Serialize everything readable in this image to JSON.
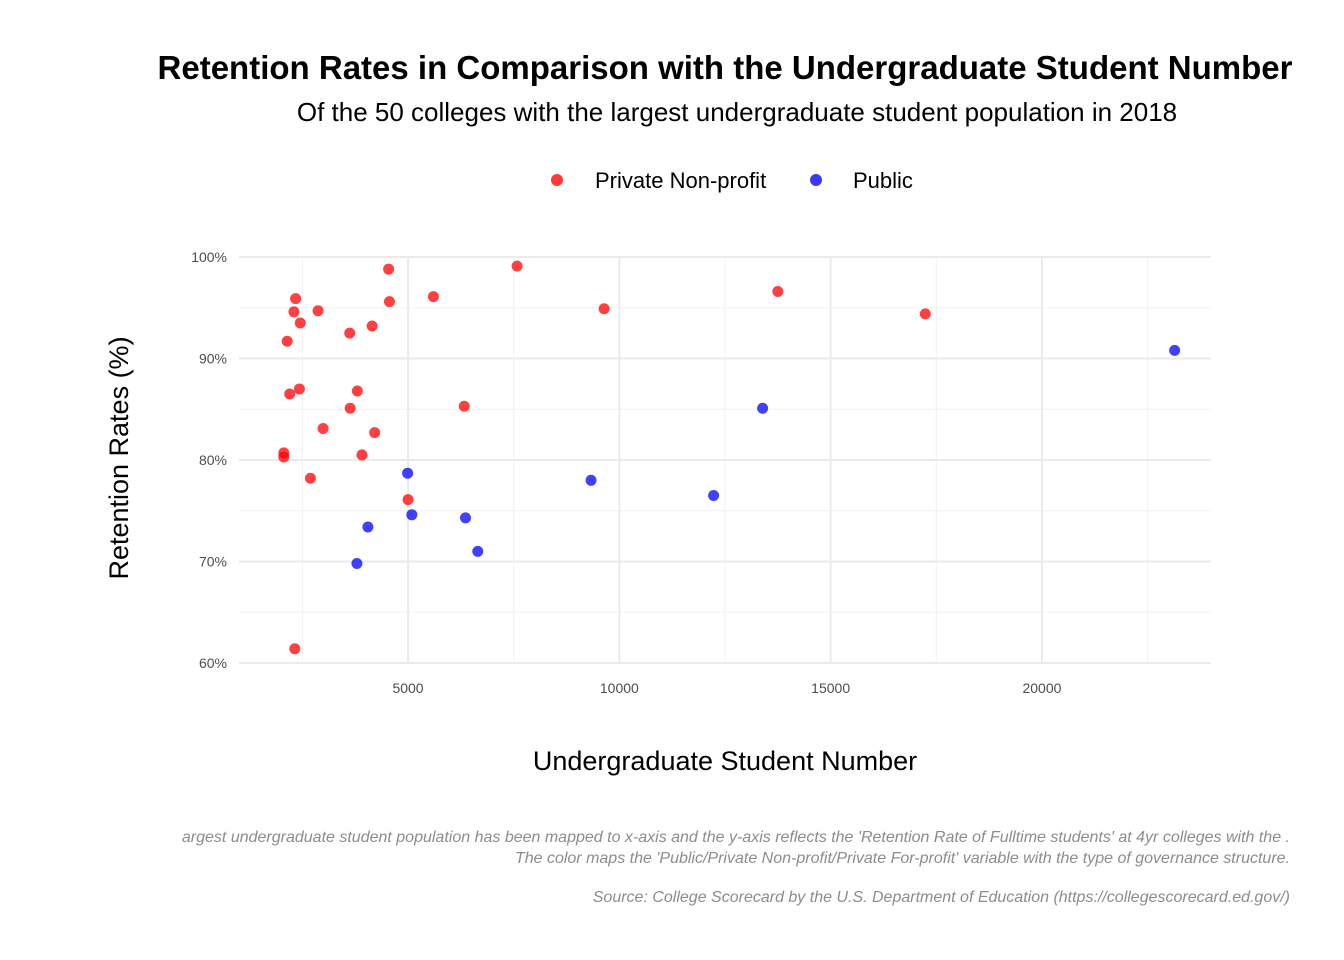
{
  "colors": {
    "private_non_profit": "#ff0000",
    "public": "#0000ff",
    "grid_major": "#ebebeb",
    "grid_minor": "#f2f2f2",
    "caption": "#8c8c8c"
  },
  "chart_data": {
    "type": "scatter",
    "title": "Retention Rates in Comparison with the Undergraduate Student Number",
    "subtitle": "Of the 50 colleges with the largest undergraduate student population in 2018",
    "xlabel": "Undergraduate Student Number",
    "ylabel": "Retention Rates (%)",
    "xlim": [
      1000,
      24000
    ],
    "ylim": [
      0.6,
      1.0
    ],
    "x_ticks": [
      5000,
      10000,
      15000,
      20000
    ],
    "x_tick_labels": [
      "5000",
      "10000",
      "15000",
      "20000"
    ],
    "y_ticks": [
      0.6,
      0.7,
      0.8,
      0.9,
      1.0
    ],
    "y_tick_labels": [
      "60%",
      "70%",
      "80%",
      "90%",
      "100%"
    ],
    "grid": true,
    "legend_position": "top",
    "series": [
      {
        "name": "Private Non-profit",
        "color": "#ff0000",
        "points": [
          [
            2060,
            0.807
          ],
          [
            2060,
            0.803
          ],
          [
            2140,
            0.917
          ],
          [
            2200,
            0.865
          ],
          [
            2300,
            0.946
          ],
          [
            2320,
            0.614
          ],
          [
            2340,
            0.959
          ],
          [
            2430,
            0.87
          ],
          [
            2450,
            0.935
          ],
          [
            2690,
            0.782
          ],
          [
            2870,
            0.947
          ],
          [
            2990,
            0.831
          ],
          [
            3620,
            0.925
          ],
          [
            3630,
            0.851
          ],
          [
            3800,
            0.868
          ],
          [
            3910,
            0.805
          ],
          [
            4150,
            0.932
          ],
          [
            4210,
            0.827
          ],
          [
            4540,
            0.988
          ],
          [
            4560,
            0.956
          ],
          [
            5000,
            0.761
          ],
          [
            5600,
            0.961
          ],
          [
            6330,
            0.853
          ],
          [
            7580,
            0.991
          ],
          [
            9640,
            0.949
          ],
          [
            13750,
            0.966
          ],
          [
            17240,
            0.944
          ]
        ]
      },
      {
        "name": "Public",
        "color": "#0000ff",
        "points": [
          [
            3790,
            0.698
          ],
          [
            4050,
            0.734
          ],
          [
            4990,
            0.787
          ],
          [
            5090,
            0.746
          ],
          [
            6360,
            0.743
          ],
          [
            6650,
            0.71
          ],
          [
            9330,
            0.78
          ],
          [
            12230,
            0.765
          ],
          [
            13390,
            0.851
          ],
          [
            23140,
            0.908
          ]
        ]
      }
    ]
  },
  "caption": {
    "line1": "argest undergraduate student population has been mapped to x-axis and the y-axis reflects the 'Retention Rate of Fulltime students' at 4yr colleges with the .",
    "line2": "The  color maps the 'Public/Private Non-profit/Private For-profit' variable with the type of governance structure.",
    "source": "Source: College Scorecard by the U.S. Department of Education (https://collegescorecard.ed.gov/)"
  }
}
